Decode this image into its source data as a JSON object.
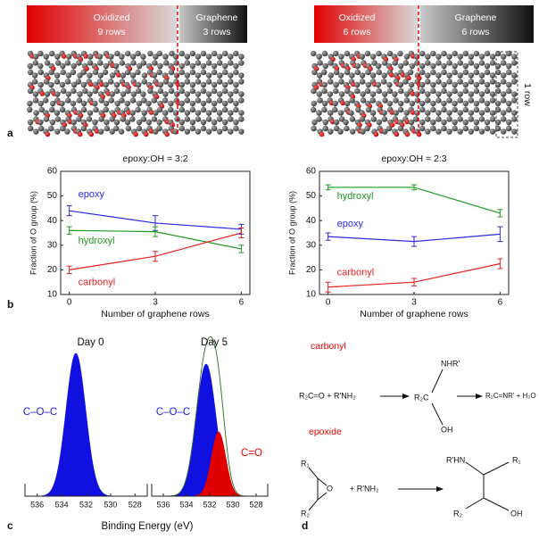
{
  "panels": {
    "a": {
      "label": "a",
      "left": {
        "oxidized": "Oxidized",
        "oxidized_rows": "9 rows",
        "graphene": "Graphene",
        "graphene_rows": "3 rows"
      },
      "right": {
        "oxidized": "Oxidized",
        "oxidized_rows": "6 rows",
        "graphene": "Graphene",
        "graphene_rows": "6 rows",
        "row_box": "1 row"
      }
    },
    "b": {
      "label": "b"
    },
    "c": {
      "label": "c",
      "xlabel": "Binding Energy (eV)"
    },
    "d": {
      "label": "d",
      "carbonyl": {
        "title": "carbonyl",
        "reactants": "R₂C=O + R'NH₂",
        "amine": "NHR'",
        "carbon": "R₂C",
        "hydroxyl": "OH",
        "products": "R₂C=NR' + H₂O"
      },
      "epoxide": {
        "title": "epoxide",
        "r1": "R₁",
        "oxygen": "O",
        "r2": "R₂",
        "reagent": "+ R'NH₂",
        "amine": "R'HN",
        "p_r1": "R₁",
        "p_r2": "R₂",
        "hydroxyl": "OH"
      }
    }
  },
  "chart_data": [
    {
      "type": "line",
      "title": "epoxy:OH = 3:2",
      "xlabel": "Number of graphene rows",
      "ylabel": "Fraction of O group (%)",
      "x": [
        0,
        3,
        6
      ],
      "xlim": [
        -0.3,
        6.3
      ],
      "xticks": [
        0,
        3,
        6
      ],
      "ylim": [
        10,
        60
      ],
      "yticks": [
        10,
        20,
        30,
        40,
        50,
        60
      ],
      "series": [
        {
          "name": "epoxy",
          "color": "#2a2ae0",
          "values": [
            44,
            39,
            36.5
          ],
          "errors": [
            2,
            3,
            2
          ]
        },
        {
          "name": "hydroxyl",
          "color": "#1f9a1f",
          "values": [
            36,
            35.5,
            28.5
          ],
          "errors": [
            1.5,
            2,
            1.5
          ]
        },
        {
          "name": "carbonyl",
          "color": "#e82020",
          "values": [
            20,
            25.5,
            35
          ],
          "errors": [
            1.5,
            2,
            2
          ]
        }
      ]
    },
    {
      "type": "line",
      "title": "epoxy:OH = 2:3",
      "xlabel": "Number of graphene rows",
      "ylabel": "Fraction of O group (%)",
      "x": [
        0,
        3,
        6
      ],
      "xlim": [
        -0.3,
        6.3
      ],
      "xticks": [
        0,
        3,
        6
      ],
      "ylim": [
        10,
        60
      ],
      "yticks": [
        10,
        20,
        30,
        40,
        50,
        60
      ],
      "series": [
        {
          "name": "hydroxyl",
          "color": "#1f9a1f",
          "values": [
            53.5,
            53.5,
            43
          ],
          "errors": [
            1,
            1,
            1.5
          ]
        },
        {
          "name": "epoxy",
          "color": "#2a2ae0",
          "values": [
            33.5,
            31.5,
            34.5
          ],
          "errors": [
            1.5,
            2,
            3
          ]
        },
        {
          "name": "carbonyl",
          "color": "#e82020",
          "values": [
            13,
            15,
            22.5
          ],
          "errors": [
            2,
            1.5,
            2
          ]
        }
      ]
    },
    {
      "type": "spectrum",
      "title": "Day 0",
      "xlim": [
        537,
        527
      ],
      "xticks": [
        536,
        534,
        532,
        530,
        528
      ],
      "annotations": [
        "C–O–C"
      ]
    },
    {
      "type": "spectrum",
      "title": "Day 5",
      "xlim": [
        537,
        527
      ],
      "xticks": [
        536,
        534,
        532,
        530,
        528
      ],
      "annotations": [
        "C–O–C",
        "C=O"
      ]
    }
  ]
}
